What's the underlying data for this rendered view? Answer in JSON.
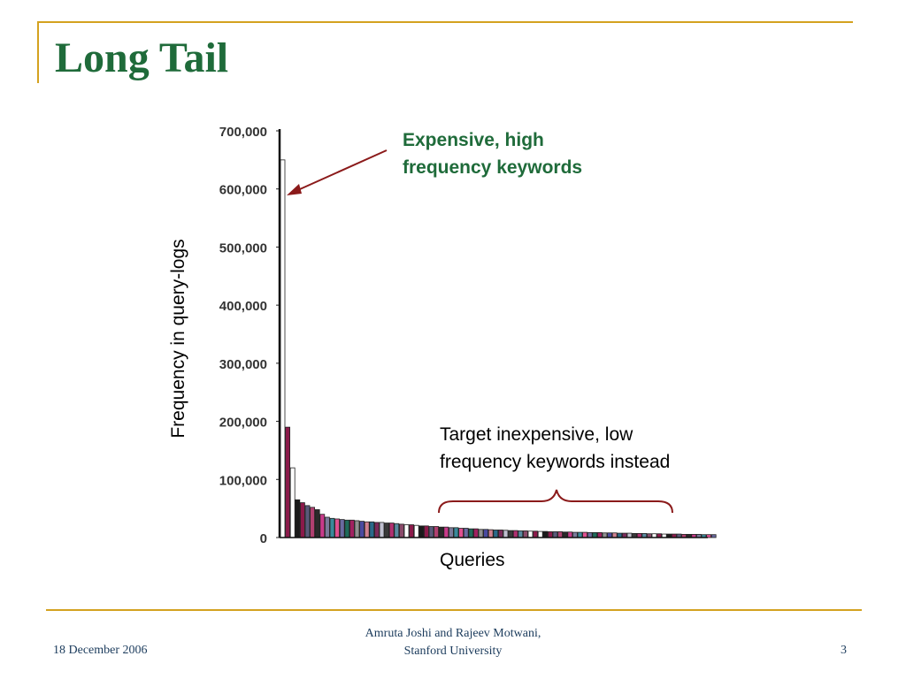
{
  "slide": {
    "title": "Long Tail",
    "footer": {
      "date": "18 December 2006",
      "author_line1": "Amruta Joshi and Rajeev Motwani,",
      "author_line2": "Stanford University",
      "page": "3"
    }
  },
  "chart_data": {
    "type": "bar",
    "ylabel": "Frequency in query-logs",
    "xlabel": "Queries",
    "ylim": [
      0,
      700000
    ],
    "yticks": [
      "700,000",
      "600,000",
      "500,000",
      "400,000",
      "300,000",
      "200,000",
      "100,000",
      "0"
    ],
    "values": [
      650000,
      190000,
      120000,
      65000,
      60000,
      55000,
      52000,
      48000,
      40000,
      35000,
      33000,
      32000,
      31000,
      30000,
      30000,
      29000,
      28000,
      27000,
      27000,
      26000,
      26000,
      25000,
      25000,
      24000,
      23000,
      22000,
      22000,
      21000,
      20000,
      20000,
      19000,
      19000,
      18000,
      18000,
      17000,
      17000,
      16000,
      16000,
      15000,
      15000,
      14000,
      14000,
      13500,
      13000,
      13000,
      12500,
      12000,
      12000,
      11500,
      11500,
      11000,
      11000,
      10500,
      10500,
      10000,
      10000,
      10000,
      9500,
      9500,
      9000,
      9000,
      9000,
      8500,
      8500,
      8500,
      8000,
      8000,
      8000,
      7500,
      7500,
      7500,
      7000,
      7000,
      7000,
      6500,
      6500,
      6500,
      6000,
      6000,
      6000,
      6000,
      5500,
      5500,
      5500,
      5500,
      5000,
      5000,
      5000
    ],
    "bar_colors": [
      "#ffffff",
      "#8b1a4a",
      "#ffffff",
      "#1a1a1a",
      "#8b1a4a",
      "#5a5a7a",
      "#b04070",
      "#2a2a2a",
      "#c83a8a",
      "#7a7a9a",
      "#3a8a9a",
      "#e05090",
      "#6a6aa0",
      "#1f6b5a",
      "#a02060",
      "#909090",
      "#4a4aa0",
      "#d08090",
      "#2a6a8a",
      "#7a2a5a",
      "#c0c0d0",
      "#3a3a3a",
      "#b03070",
      "#5a8aa0",
      "#8a4a6a"
    ],
    "annotations": {
      "head": [
        "Expensive, high",
        "frequency keywords"
      ],
      "tail": [
        "Target inexpensive, low",
        "frequency keywords instead"
      ]
    },
    "colors": {
      "arrow": "#8b1a1a",
      "brace": "#8b1a1a",
      "title_green": "#1f6b3a",
      "frame_gold": "#d4a21f"
    }
  }
}
